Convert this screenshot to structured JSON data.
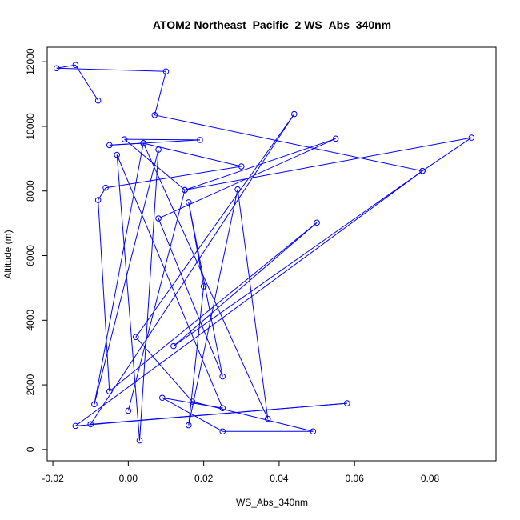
{
  "chart_data": {
    "type": "scatter",
    "title": "ATOM2 Northeast_Pacific_2 WS_Abs_340nm",
    "xlabel": "WS_Abs_340nm",
    "ylabel": "Altitude (m)",
    "xlim": [
      -0.0215,
      0.0975
    ],
    "ylim": [
      -350,
      12450
    ],
    "x_ticks": [
      -0.02,
      0,
      0.02,
      0.04,
      0.06,
      0.08
    ],
    "x_tick_labels": [
      "-0.02",
      "0.00",
      "0.02",
      "0.04",
      "0.06",
      "0.08"
    ],
    "y_ticks": [
      0,
      2000,
      4000,
      6000,
      8000,
      10000,
      12000
    ],
    "y_tick_labels": [
      "0",
      "2000",
      "4000",
      "6000",
      "8000",
      "10000",
      "12000"
    ],
    "grid": false,
    "series": [
      {
        "color": "#0000ff",
        "connected": true,
        "points": [
          [
            -0.008,
            10800
          ],
          [
            -0.014,
            11900
          ],
          [
            -0.019,
            11800
          ],
          [
            0.01,
            11700
          ],
          [
            0.007,
            10350
          ],
          [
            0.078,
            8620
          ],
          [
            0.091,
            9650
          ],
          [
            0.015,
            8030
          ],
          [
            0.055,
            9620
          ],
          [
            0.008,
            7150
          ],
          [
            0.025,
            2260
          ],
          [
            0.016,
            7650
          ],
          [
            0.02,
            5050
          ],
          [
            0.016,
            750
          ],
          [
            0.029,
            8050
          ],
          [
            0.037,
            950
          ],
          [
            0.004,
            9480
          ],
          [
            -0.009,
            1400
          ],
          [
            0.008,
            9280
          ],
          [
            0.003,
            280
          ],
          [
            -0.003,
            9120
          ],
          [
            0.025,
            1280
          ],
          [
            0.009,
            1600
          ],
          [
            0.025,
            560
          ],
          [
            0.049,
            560
          ],
          [
            0.017,
            1480
          ],
          [
            0.002,
            3480
          ],
          [
            0.044,
            10380
          ],
          [
            -0.01,
            780
          ],
          [
            0.058,
            1430
          ],
          [
            -0.014,
            730
          ],
          [
            0.078,
            8620
          ],
          [
            0.012,
            3200
          ],
          [
            0.05,
            7020
          ],
          [
            -0.005,
            1800
          ],
          [
            -0.008,
            7720
          ],
          [
            -0.006,
            8100
          ],
          [
            0.03,
            8760
          ],
          [
            0.004,
            9480
          ],
          [
            -0.005,
            9420
          ],
          [
            0.019,
            9580
          ],
          [
            -0.001,
            9600
          ],
          [
            0.015,
            8030
          ],
          [
            0.0,
            1200
          ]
        ]
      }
    ]
  }
}
